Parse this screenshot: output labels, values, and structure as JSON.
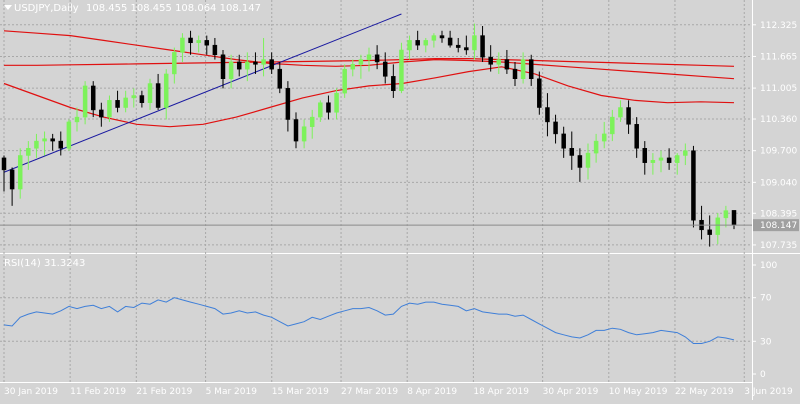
{
  "header": {
    "symbol": "USDJPY,Daily",
    "ohlc": "108.455 108.455 108.064 108.147"
  },
  "rsi_header": "RSI(14) 31.3243",
  "colors": {
    "background": "#d4d4d4",
    "grid": "#a8a8a8",
    "bull": "#7cf25a",
    "bear": "#000000",
    "ma": "#e01010",
    "trendline": "#1a1aa0",
    "rsi": "#3f7fd8",
    "price_tag": "#a0a0a0"
  },
  "chart_data": [
    {
      "type": "candlestick",
      "title": "USDJPY,Daily",
      "x_labels": [
        "30 Jan 2019",
        "11 Feb 2019",
        "21 Feb 2019",
        "5 Mar 2019",
        "15 Mar 2019",
        "27 Mar 2019",
        "8 Apr 2019",
        "18 Apr 2019",
        "30 Apr 2019",
        "10 May 2019",
        "22 May 2019",
        "3 Jun 2019"
      ],
      "y_ticks": [
        "112.325",
        "111.665",
        "111.005",
        "110.360",
        "109.700",
        "109.040",
        "108.395",
        "107.735"
      ],
      "ylim": [
        107.65,
        112.55
      ],
      "current_price": "108.147",
      "grid": true,
      "candles": [
        [
          109.55,
          109.6,
          108.85,
          109.3
        ],
        [
          109.3,
          109.35,
          108.55,
          108.9
        ],
        [
          108.9,
          109.75,
          108.7,
          109.6
        ],
        [
          109.6,
          109.9,
          109.3,
          109.75
        ],
        [
          109.75,
          110.05,
          109.55,
          109.9
        ],
        [
          109.9,
          110.1,
          109.6,
          109.95
        ],
        [
          109.95,
          110.05,
          109.7,
          109.9
        ],
        [
          109.9,
          110.1,
          109.6,
          109.75
        ],
        [
          109.75,
          110.35,
          109.7,
          110.3
        ],
        [
          110.3,
          110.6,
          110.1,
          110.4
        ],
        [
          110.4,
          111.15,
          110.25,
          111.05
        ],
        [
          111.05,
          111.15,
          110.4,
          110.55
        ],
        [
          110.55,
          110.7,
          110.2,
          110.4
        ],
        [
          110.4,
          110.85,
          110.3,
          110.75
        ],
        [
          110.75,
          110.95,
          110.5,
          110.6
        ],
        [
          110.6,
          110.95,
          110.5,
          110.8
        ],
        [
          110.8,
          111.0,
          110.6,
          110.85
        ],
        [
          110.85,
          110.95,
          110.6,
          110.7
        ],
        [
          110.7,
          111.2,
          110.55,
          111.1
        ],
        [
          111.1,
          111.3,
          110.55,
          110.6
        ],
        [
          110.6,
          111.4,
          110.35,
          111.3
        ],
        [
          111.3,
          111.85,
          111.1,
          111.75
        ],
        [
          111.75,
          112.15,
          111.55,
          112.05
        ],
        [
          112.05,
          112.2,
          111.7,
          111.95
        ],
        [
          111.95,
          112.1,
          111.75,
          112.0
        ],
        [
          112.0,
          112.1,
          111.7,
          111.9
        ],
        [
          111.9,
          112.05,
          111.6,
          111.7
        ],
        [
          111.7,
          111.8,
          111.0,
          111.2
        ],
        [
          111.2,
          111.7,
          111.0,
          111.55
        ],
        [
          111.55,
          111.7,
          111.25,
          111.4
        ],
        [
          111.4,
          111.75,
          111.15,
          111.55
        ],
        [
          111.55,
          111.75,
          111.3,
          111.5
        ],
        [
          111.5,
          112.05,
          111.25,
          111.6
        ],
        [
          111.6,
          111.75,
          111.3,
          111.4
        ],
        [
          111.4,
          111.55,
          110.9,
          111.0
        ],
        [
          111.0,
          111.15,
          110.1,
          110.35
        ],
        [
          110.35,
          110.5,
          109.75,
          109.9
        ],
        [
          109.9,
          110.35,
          109.75,
          110.2
        ],
        [
          110.2,
          110.55,
          109.95,
          110.4
        ],
        [
          110.4,
          110.75,
          110.3,
          110.7
        ],
        [
          110.7,
          110.85,
          110.35,
          110.5
        ],
        [
          110.5,
          111.0,
          110.35,
          110.9
        ],
        [
          110.9,
          111.5,
          110.8,
          111.4
        ],
        [
          111.4,
          111.6,
          111.25,
          111.5
        ],
        [
          111.5,
          111.7,
          111.2,
          111.6
        ],
        [
          111.6,
          111.85,
          111.35,
          111.7
        ],
        [
          111.7,
          111.9,
          111.4,
          111.55
        ],
        [
          111.55,
          111.75,
          111.1,
          111.25
        ],
        [
          111.25,
          111.5,
          110.8,
          110.95
        ],
        [
          110.95,
          111.95,
          110.9,
          111.8
        ],
        [
          111.8,
          112.1,
          111.6,
          112.0
        ],
        [
          112.0,
          112.2,
          111.8,
          111.9
        ],
        [
          111.9,
          112.05,
          111.75,
          112.0
        ],
        [
          112.0,
          112.15,
          111.85,
          112.1
        ],
        [
          112.1,
          112.2,
          111.95,
          112.05
        ],
        [
          112.05,
          112.2,
          111.85,
          111.9
        ],
        [
          111.9,
          112.05,
          111.75,
          111.85
        ],
        [
          111.85,
          112.1,
          111.7,
          111.8
        ],
        [
          111.8,
          112.35,
          111.6,
          112.1
        ],
        [
          112.1,
          112.3,
          111.55,
          111.65
        ],
        [
          111.65,
          111.9,
          111.35,
          111.5
        ],
        [
          111.5,
          111.75,
          111.3,
          111.6
        ],
        [
          111.6,
          111.8,
          111.3,
          111.4
        ],
        [
          111.4,
          111.55,
          111.05,
          111.2
        ],
        [
          111.2,
          111.75,
          111.1,
          111.6
        ],
        [
          111.6,
          111.7,
          111.05,
          111.2
        ],
        [
          111.2,
          111.35,
          110.45,
          110.6
        ],
        [
          110.6,
          110.9,
          110.0,
          110.3
        ],
        [
          110.3,
          110.45,
          109.85,
          110.05
        ],
        [
          110.05,
          110.2,
          109.55,
          109.75
        ],
        [
          109.75,
          110.1,
          109.3,
          109.6
        ],
        [
          109.6,
          109.75,
          109.05,
          109.35
        ],
        [
          109.35,
          109.85,
          109.1,
          109.65
        ],
        [
          109.65,
          110.05,
          109.45,
          109.9
        ],
        [
          109.9,
          110.3,
          109.75,
          110.05
        ],
        [
          110.05,
          110.55,
          109.9,
          110.4
        ],
        [
          110.4,
          110.75,
          110.3,
          110.6
        ],
        [
          110.6,
          110.75,
          110.05,
          110.25
        ],
        [
          110.25,
          110.4,
          109.55,
          109.75
        ],
        [
          109.75,
          109.9,
          109.2,
          109.45
        ],
        [
          109.45,
          109.65,
          109.2,
          109.5
        ],
        [
          109.5,
          109.7,
          109.25,
          109.55
        ],
        [
          109.55,
          109.75,
          109.3,
          109.45
        ],
        [
          109.45,
          109.65,
          109.2,
          109.6
        ],
        [
          109.6,
          109.85,
          109.4,
          109.7
        ],
        [
          109.7,
          109.8,
          108.1,
          108.25
        ],
        [
          108.25,
          108.55,
          107.85,
          108.05
        ],
        [
          108.05,
          108.35,
          107.7,
          107.95
        ],
        [
          107.95,
          108.4,
          107.75,
          108.3
        ],
        [
          108.3,
          108.55,
          108.1,
          108.45
        ],
        [
          108.455,
          108.455,
          108.064,
          108.147
        ]
      ],
      "moving_averages": [
        {
          "y": [
            112.2,
            112.15,
            112.1,
            112.0,
            111.9,
            111.8,
            111.7,
            111.6,
            111.52,
            111.48,
            111.46,
            111.48,
            111.55,
            111.6,
            111.58,
            111.55,
            111.5,
            111.45,
            111.4,
            111.35,
            111.3,
            111.25,
            111.2
          ]
        },
        {
          "y": [
            111.48,
            111.48,
            111.49,
            111.5,
            111.51,
            111.52,
            111.53,
            111.54,
            111.55,
            111.56,
            111.57,
            111.58,
            111.6,
            111.62,
            111.62,
            111.6,
            111.58,
            111.56,
            111.54,
            111.52,
            111.5,
            111.48,
            111.46
          ]
        },
        {
          "y": [
            111.1,
            110.85,
            110.6,
            110.4,
            110.25,
            110.2,
            110.25,
            110.4,
            110.6,
            110.8,
            110.95,
            111.05,
            111.1,
            111.22,
            111.35,
            111.45,
            111.3,
            111.05,
            110.85,
            110.75,
            110.7,
            110.72,
            110.7
          ]
        }
      ],
      "trendline": {
        "x": [
          0,
          49
        ],
        "y": [
          109.25,
          112.55
        ]
      }
    },
    {
      "type": "line",
      "title": "RSI(14) 31.3243",
      "y_ticks": [
        "100",
        "70",
        "30",
        "0"
      ],
      "ylim": [
        0,
        100
      ],
      "levels": [
        70,
        30
      ],
      "series": [
        {
          "values": [
            45,
            44,
            52,
            55,
            57,
            56,
            55,
            58,
            62,
            60,
            62,
            63,
            60,
            62,
            57,
            62,
            61,
            65,
            64,
            68,
            66,
            70,
            68,
            66,
            64,
            62,
            60,
            55,
            56,
            58,
            56,
            57,
            54,
            52,
            48,
            44,
            46,
            48,
            52,
            50,
            53,
            56,
            58,
            60,
            60,
            61,
            58,
            54,
            55,
            62,
            65,
            64,
            66,
            66,
            64,
            63,
            62,
            58,
            60,
            57,
            56,
            55,
            55,
            53,
            54,
            50,
            46,
            42,
            38,
            36,
            34,
            33,
            36,
            40,
            40,
            42,
            41,
            38,
            36,
            37,
            38,
            40,
            39,
            38,
            34,
            28,
            28,
            30,
            34,
            33,
            31.32
          ]
        }
      ]
    }
  ]
}
